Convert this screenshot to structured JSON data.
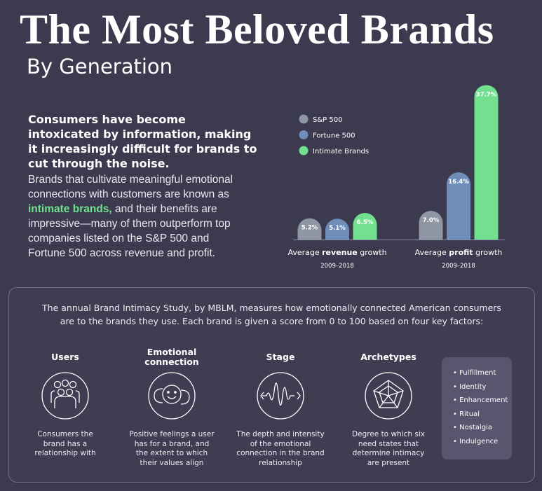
{
  "header": {
    "title": "The Most Beloved Brands",
    "subtitle": "By Generation"
  },
  "intro": {
    "lead": "Consumers have become intoxicated by information, making it increasingly difficult for brands to cut through the noise.",
    "body": [
      "Brands that cultivate meaningful emotional connections with customers are known as ",
      "intimate brands,",
      " and their benefits are impressive—many of them outperform top companies listed on the S&P 500 and Fortune 500 across revenue and profit."
    ]
  },
  "chart_data": {
    "type": "bar",
    "categories": [
      [
        "Average ",
        "revenue",
        " growth"
      ],
      [
        "Average ",
        "profit",
        " growth"
      ]
    ],
    "periods": [
      "2009–2018",
      "2009–2018"
    ],
    "series": [
      {
        "name": "S&P 500",
        "color": "#8e96a3",
        "values": [
          5.2,
          7.0
        ],
        "value_labels": [
          "5.2%",
          "7.0%"
        ]
      },
      {
        "name": "Fortune 500",
        "color": "#6e8db8",
        "values": [
          5.1,
          16.4
        ],
        "value_labels": [
          "5.1%",
          "16.4%"
        ]
      },
      {
        "name": "Intimate Brands",
        "color": "#72e08f",
        "values": [
          6.5,
          37.7
        ],
        "value_labels": [
          "6.5%",
          "37.7%"
        ]
      }
    ]
  },
  "study": {
    "text": "The annual Brand Intimacy Study, by MBLM, measures how emotionally connected American consumers are to the brands they use. Each brand is given a score from 0 to 100 based on four key factors:",
    "factors": [
      {
        "title": "Users",
        "description": "Consumers the brand has a relationship with"
      },
      {
        "title": "Emotional connection",
        "description": "Positive feelings a user has for a brand, and the extent to which their values align"
      },
      {
        "title": "Stage",
        "description": "The depth and intensity of the emotional connection in the brand relationship"
      },
      {
        "title": "Archetypes",
        "description": "Degree to which six need states that determine intimacy are present"
      }
    ],
    "archetypes": [
      "• Fulfillment",
      "• Identity",
      "• Enhancement",
      "• Ritual",
      "• Nostalgia",
      "• Indulgence"
    ]
  }
}
